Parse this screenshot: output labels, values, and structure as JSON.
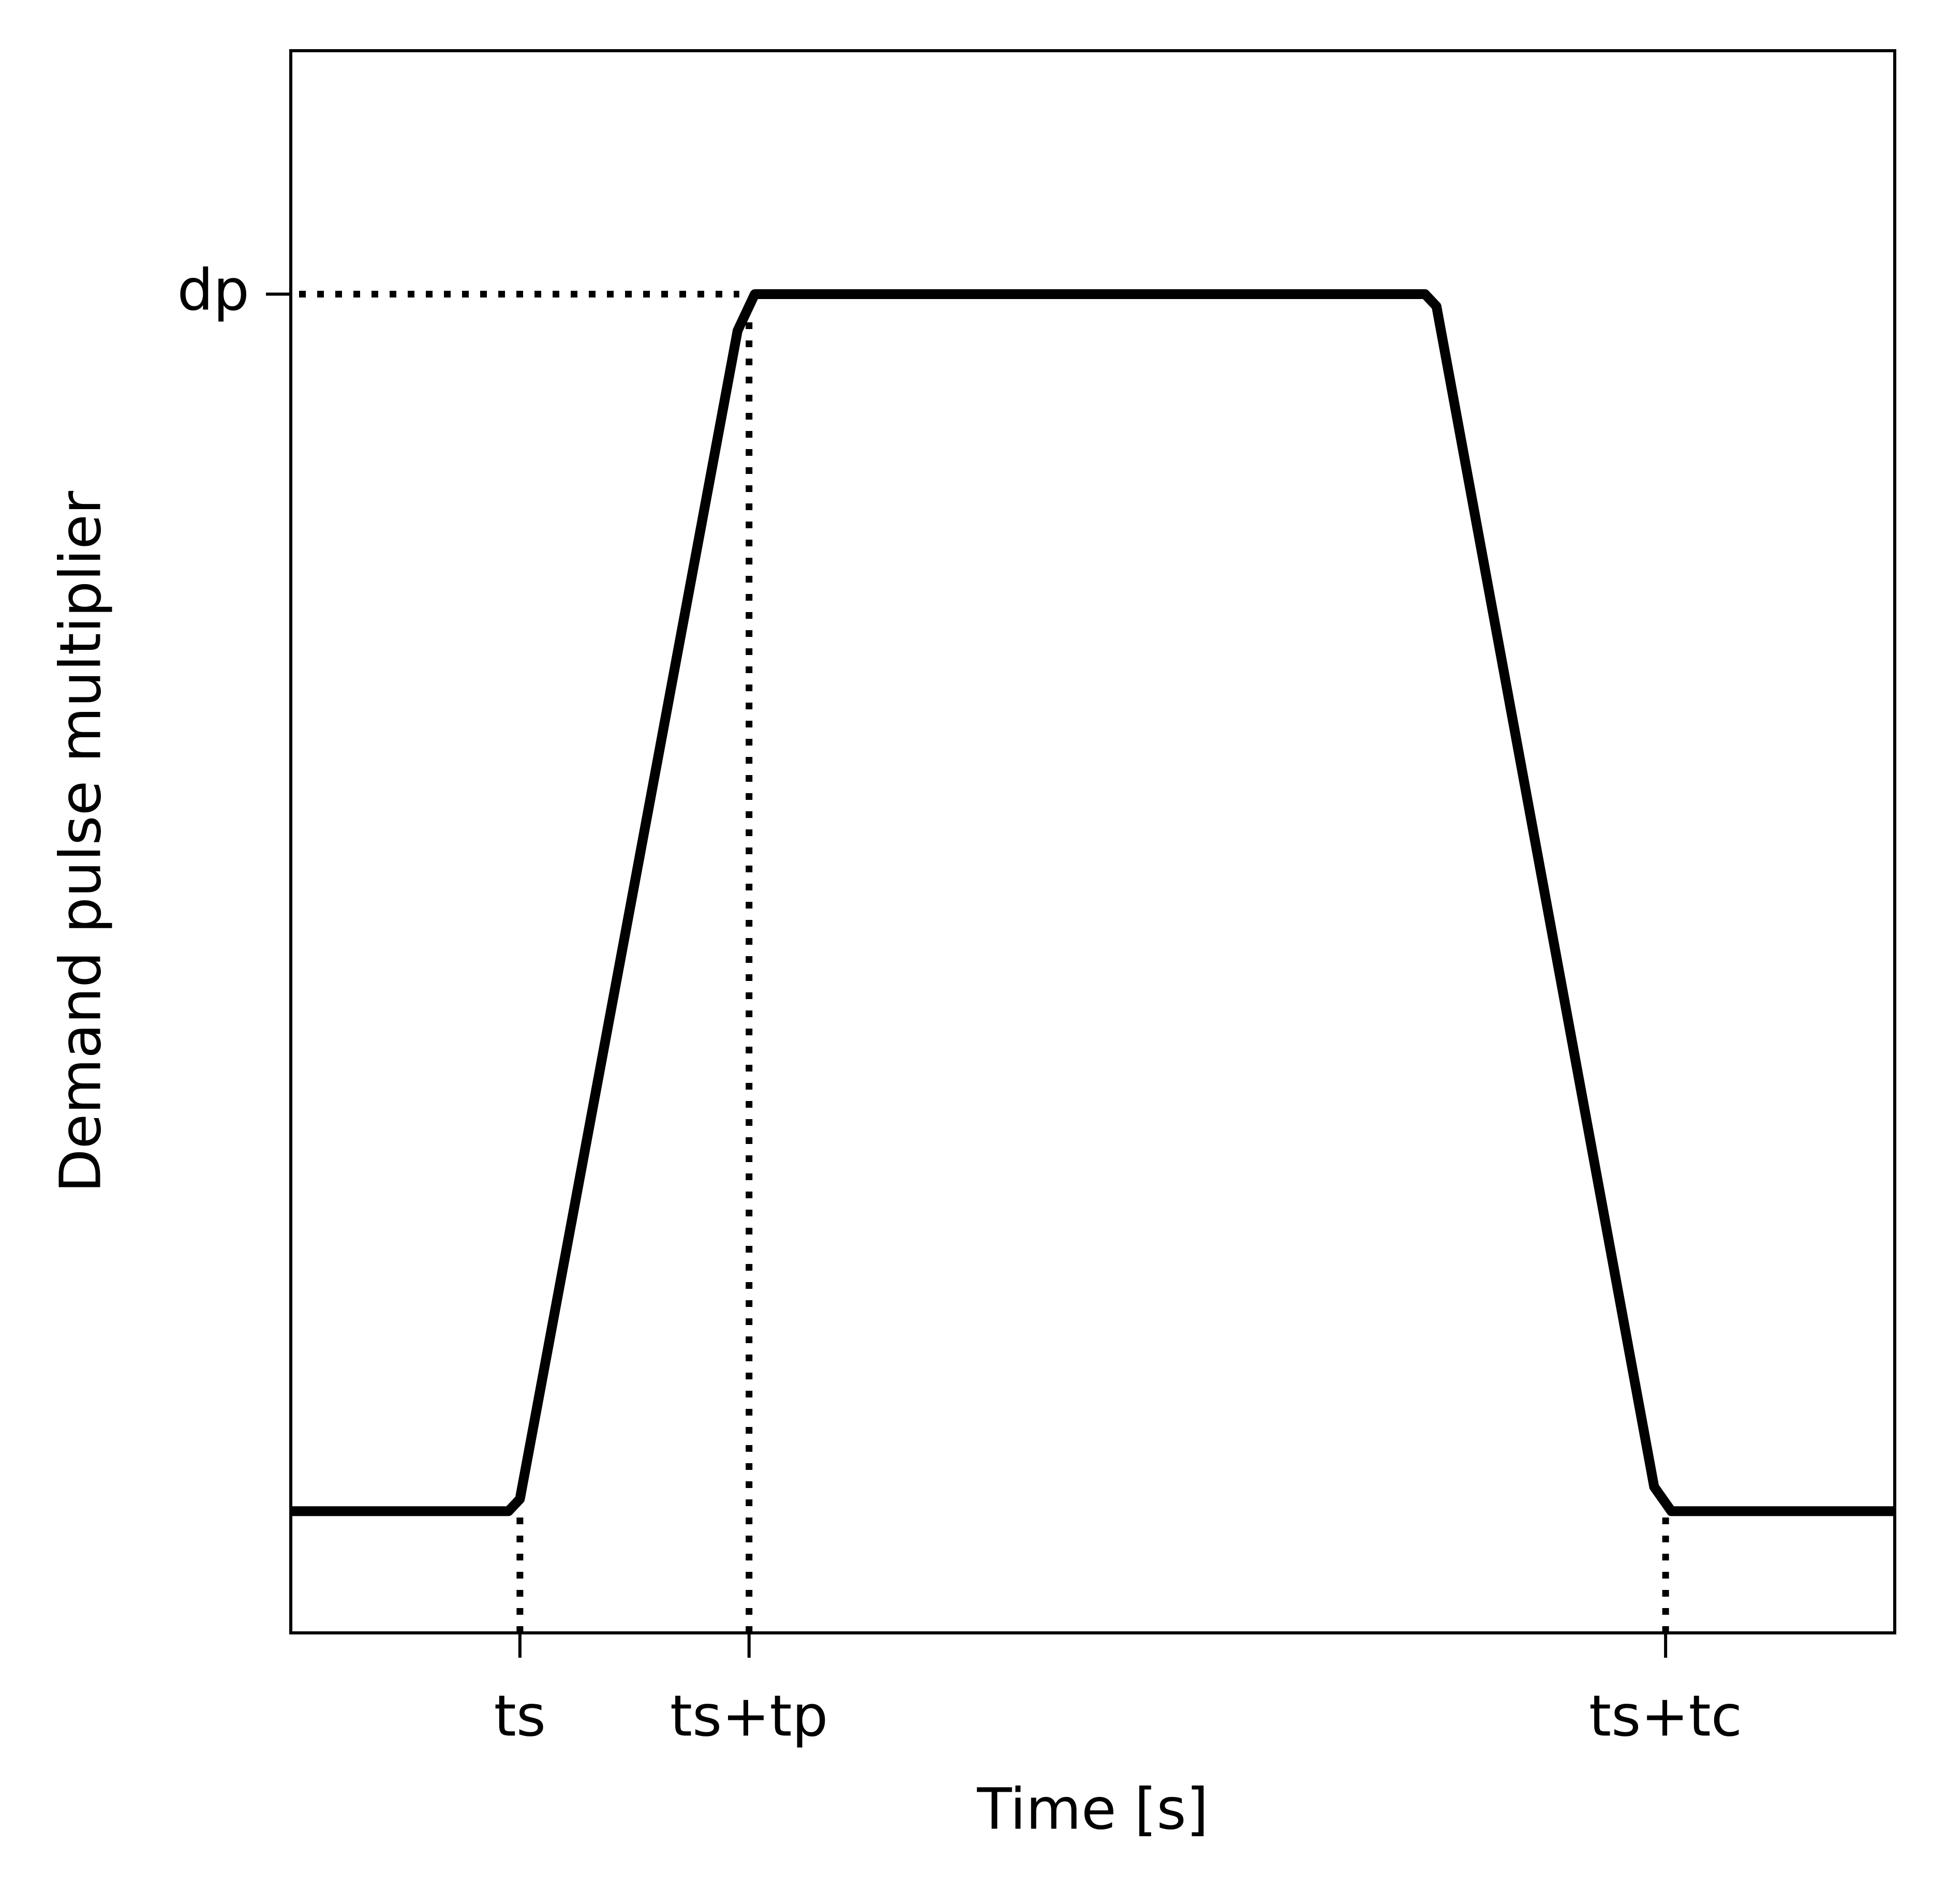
{
  "chart_data": {
    "type": "line",
    "x_label": "Time [s]",
    "y_label": "Demand pulse multiplier",
    "x": [
      0,
      1.9,
      2.0,
      3.9,
      4.05,
      9.9,
      10.0,
      11.9,
      12.05,
      14
    ],
    "series": [
      {
        "color": "#000000",
        "values": [
          1,
          1,
          1.01,
          1.97,
          2,
          2,
          1.99,
          1.02,
          1,
          1
        ]
      }
    ],
    "xlim": [
      0,
      14
    ],
    "xticks": [
      {
        "value": 2,
        "label": "ts"
      },
      {
        "value": 4,
        "label": "ts+tp"
      },
      {
        "value": 12,
        "label": "ts+tc"
      }
    ],
    "ylim": [
      0.9,
      2.2
    ],
    "yticks": [
      {
        "value": 2,
        "label": "dp"
      }
    ],
    "guides": "dotted",
    "grid": false
  }
}
